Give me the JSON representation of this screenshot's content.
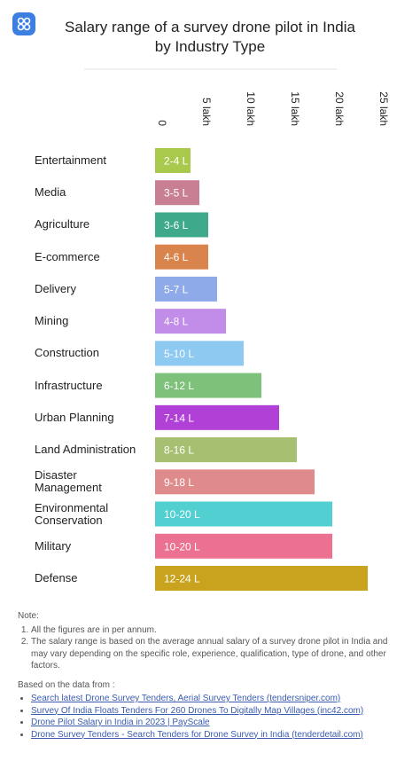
{
  "chart_data": {
    "type": "barh",
    "title": "Salary range of a survey drone pilot in India by Industry Type",
    "categories": [
      "Entertainment",
      "Media",
      "Agriculture",
      "E-commerce",
      "Delivery",
      "Mining",
      "Construction",
      "Infrastructure",
      "Urban Planning",
      "Land Administration",
      "Disaster\nManagement",
      "Environmental\nConservation",
      "Military",
      "Defense"
    ],
    "values": [
      4,
      5,
      6,
      6,
      7,
      8,
      10,
      12,
      14,
      16,
      18,
      20,
      20,
      24
    ],
    "value_labels": [
      "2-4 L",
      "3-5 L",
      "3-6 L",
      "4-6 L",
      "5-7 L",
      "4-8 L",
      "5-10 L",
      "6-12 L",
      "7-14 L",
      "8-16 L",
      "9-18 L",
      "10-20 L",
      "10-20 L",
      "12-24 L"
    ],
    "colors": [
      "#a9c94c",
      "#c97f93",
      "#3fa98b",
      "#d9844c",
      "#8eaae9",
      "#c28ce9",
      "#8dc9f1",
      "#7ec17a",
      "#b141d6",
      "#a6bf70",
      "#e08b8b",
      "#52cfd0",
      "#ec7190",
      "#c9a31e"
    ],
    "xlim": [
      0,
      25
    ],
    "xticks": [
      0,
      {
        "value": 5,
        "label": "5 lakh"
      },
      {
        "value": 10,
        "label": "10 lakh"
      },
      {
        "value": 15,
        "label": "15 lakh"
      },
      {
        "value": 20,
        "label": "20 lakh"
      },
      {
        "value": 25,
        "label": "25 lakh"
      }
    ],
    "grid": false
  },
  "notes": {
    "heading": "Note:",
    "items": [
      "All the figures are in per annum.",
      "The salary range is based on the average annual salary of a survey drone pilot in India and may vary depending on the specific role, experience, qualification, type of drone, and other factors."
    ]
  },
  "sources": {
    "heading": "Based on the data from :",
    "items": [
      "Search latest Drone Survey Tenders, Aerial Survey Tenders (tendersniper.com)",
      "Survey Of India Floats Tenders For 260 Drones To Digitally Map Villages (inc42.com)",
      "Drone Pilot Salary in India in 2023 | PayScale",
      "Drone Survey Tenders - Search Tenders for Drone Survey in India (tenderdetail.com)"
    ]
  }
}
